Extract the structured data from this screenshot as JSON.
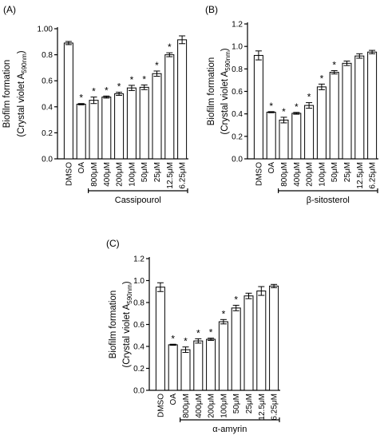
{
  "chart_data": [
    {
      "type": "bar",
      "panel": "(A)",
      "ylabel_line1": "Biofilm formation",
      "ylabel_line2_prefix": "(Crystal violet A",
      "ylabel_line2_sub": "590nm",
      "ylabel_line2_suffix": ")",
      "ylim": [
        0,
        1.0
      ],
      "yticks": [
        "0.0",
        "0.2",
        "0.4",
        "0.6",
        "0.8",
        "1.00"
      ],
      "ytick_values": [
        0,
        0.2,
        0.4,
        0.6,
        0.8,
        1.0
      ],
      "categories": [
        "DMSO",
        "OA",
        "800μM",
        "400μM",
        "200μM",
        "100μM",
        "50μM",
        "25μM",
        "12.5μM",
        "6.25μM"
      ],
      "values": [
        0.89,
        0.42,
        0.45,
        0.475,
        0.5,
        0.545,
        0.55,
        0.655,
        0.8,
        0.915
      ],
      "errors": [
        0.012,
        0.005,
        0.025,
        0.008,
        0.012,
        0.02,
        0.018,
        0.02,
        0.015,
        0.03
      ],
      "significant": [
        false,
        true,
        true,
        true,
        true,
        true,
        true,
        true,
        true,
        false
      ],
      "group_label": "Cassipourol",
      "group_range": [
        2,
        9
      ]
    },
    {
      "type": "bar",
      "panel": "(B)",
      "ylabel_line1": "Biofilm formation",
      "ylabel_line2_prefix": "(Crystal violet A",
      "ylabel_line2_sub": "590nm",
      "ylabel_line2_suffix": ")",
      "ylim": [
        0,
        1.2
      ],
      "yticks": [
        "0.0",
        "0.2",
        "0.4",
        "0.6",
        "0.8",
        "1.0",
        "1.2"
      ],
      "ytick_values": [
        0,
        0.2,
        0.4,
        0.6,
        0.8,
        1.0,
        1.2
      ],
      "categories": [
        "DMSO",
        "OA",
        "800μM",
        "400μM",
        "200μM",
        "100μM",
        "50μM",
        "25μM",
        "12.5μM",
        "6.25μM"
      ],
      "values": [
        0.92,
        0.415,
        0.345,
        0.405,
        0.475,
        0.64,
        0.77,
        0.85,
        0.915,
        0.95
      ],
      "errors": [
        0.04,
        0.005,
        0.025,
        0.008,
        0.025,
        0.025,
        0.015,
        0.02,
        0.02,
        0.015
      ],
      "significant": [
        false,
        true,
        true,
        true,
        true,
        true,
        true,
        false,
        false,
        false
      ],
      "group_label": "β-sitosterol",
      "group_range": [
        2,
        9
      ]
    },
    {
      "type": "bar",
      "panel": "(C)",
      "ylabel_line1": "Biofilm formation",
      "ylabel_line2_prefix": "(Crystal violet A",
      "ylabel_line2_sub": "590nm",
      "ylabel_line2_suffix": ")",
      "ylim": [
        0,
        1.2
      ],
      "yticks": [
        "0.0",
        "0.2",
        "0.4",
        "0.6",
        "0.8",
        "1.0",
        "1.2"
      ],
      "ytick_values": [
        0,
        0.2,
        0.4,
        0.6,
        0.8,
        1.0,
        1.2
      ],
      "categories": [
        "DMSO",
        "OA",
        "800μM",
        "400μM",
        "200μM",
        "100μM",
        "50μM",
        "25μM",
        "12.5μM",
        "6.25μM"
      ],
      "values": [
        0.94,
        0.415,
        0.37,
        0.45,
        0.465,
        0.625,
        0.75,
        0.86,
        0.905,
        0.95
      ],
      "errors": [
        0.04,
        0.005,
        0.025,
        0.02,
        0.01,
        0.02,
        0.025,
        0.025,
        0.04,
        0.015
      ],
      "significant": [
        false,
        true,
        true,
        true,
        true,
        true,
        true,
        false,
        false,
        false
      ],
      "group_label": "α-amyrin",
      "group_range": [
        2,
        9
      ]
    }
  ],
  "star_symbol": "*"
}
